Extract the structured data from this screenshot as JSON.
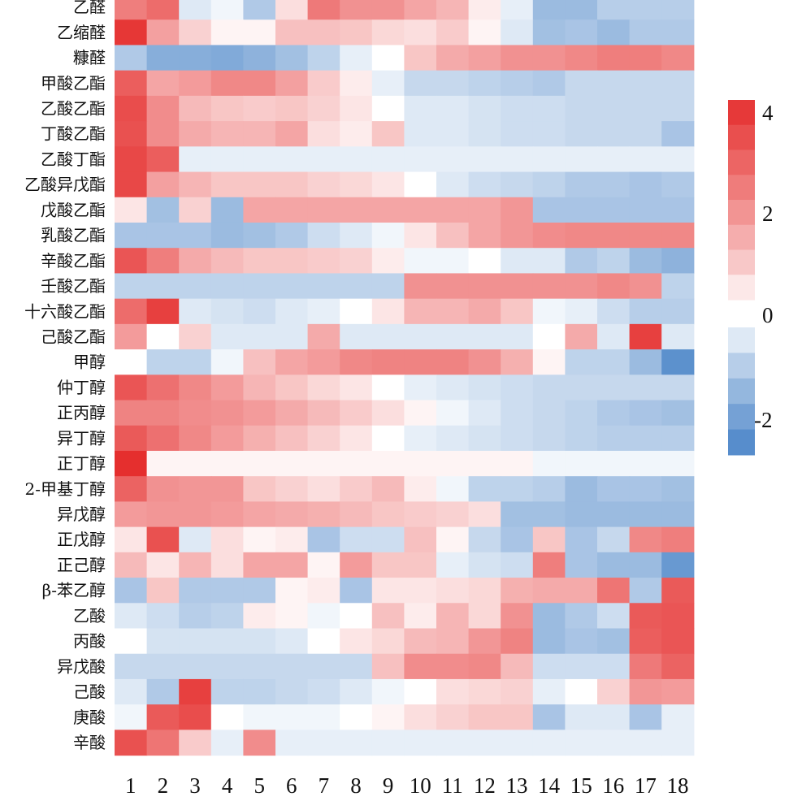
{
  "chart_data": {
    "type": "heatmap",
    "title": "",
    "xlabel": "",
    "ylabel": "",
    "rows": [
      "乙醛",
      "乙缩醛",
      "糠醛",
      "甲酸乙酯",
      "乙酸乙酯",
      "丁酸乙酯",
      "乙酸丁酯",
      "乙酸异戊酯",
      "戊酸乙酯",
      "乳酸乙酯",
      "辛酸乙酯",
      "壬酸乙酯",
      "十六酸乙酯",
      "己酸乙酯",
      "甲醇",
      "仲丁醇",
      "正丙醇",
      "异丁醇",
      "正丁醇",
      "2-甲基丁醇",
      "异戊醇",
      "正戊醇",
      "正己醇",
      "β-苯乙醇",
      "乙酸",
      "丙酸",
      "异戊酸",
      "己酸",
      "庚酸",
      "辛酸"
    ],
    "columns": [
      "1",
      "2",
      "3",
      "4",
      "5",
      "6",
      "7",
      "8",
      "9",
      "10",
      "11",
      "12",
      "13",
      "14",
      "15",
      "16",
      "17",
      "18"
    ],
    "values": [
      [
        2.2,
        2.6,
        -0.3,
        -0.1,
        -0.9,
        0.4,
        2.3,
        1.8,
        1.8,
        1.4,
        1.1,
        0.2,
        -0.2,
        -1.2,
        -1.2,
        -0.8,
        -0.8,
        -0.8
      ],
      [
        3.8,
        1.5,
        0.6,
        0.1,
        0.1,
        0.9,
        0.9,
        0.8,
        0.5,
        0.4,
        0.7,
        0.1,
        -0.3,
        -1.1,
        -1.0,
        -1.2,
        -0.9,
        -0.9
      ],
      [
        -0.9,
        -1.5,
        -1.5,
        -1.6,
        -1.4,
        -1.1,
        -0.7,
        -0.2,
        0.0,
        0.8,
        1.3,
        1.5,
        1.8,
        1.8,
        2.0,
        2.2,
        2.2,
        2.0
      ],
      [
        2.9,
        1.4,
        1.6,
        2.0,
        2.0,
        1.5,
        0.7,
        0.2,
        -0.2,
        -0.6,
        -0.6,
        -0.7,
        -0.8,
        -0.9,
        -0.6,
        -0.6,
        -0.6,
        -0.6
      ],
      [
        3.3,
        1.9,
        1.0,
        0.8,
        0.7,
        0.8,
        0.6,
        0.3,
        0.0,
        -0.3,
        -0.3,
        -0.4,
        -0.5,
        -0.5,
        -0.6,
        -0.6,
        -0.6,
        -0.6
      ],
      [
        3.2,
        1.9,
        1.3,
        1.1,
        1.1,
        1.4,
        0.4,
        0.2,
        0.8,
        -0.3,
        -0.3,
        -0.4,
        -0.5,
        -0.5,
        -0.6,
        -0.6,
        -0.6,
        -1.0
      ],
      [
        3.4,
        2.9,
        -0.2,
        -0.2,
        -0.2,
        -0.2,
        -0.2,
        -0.2,
        -0.2,
        -0.2,
        -0.2,
        -0.2,
        -0.2,
        -0.2,
        -0.2,
        -0.2,
        -0.2,
        -0.2
      ],
      [
        3.4,
        1.5,
        1.1,
        0.8,
        0.8,
        0.8,
        0.6,
        0.5,
        0.3,
        0.0,
        -0.3,
        -0.5,
        -0.6,
        -0.7,
        -0.9,
        -0.9,
        -1.0,
        -0.9
      ],
      [
        0.3,
        -1.1,
        0.6,
        -1.2,
        1.4,
        1.4,
        1.4,
        1.4,
        1.4,
        1.4,
        1.4,
        1.4,
        1.7,
        -1.0,
        -1.0,
        -1.0,
        -1.0,
        -1.0
      ],
      [
        -1.0,
        -1.0,
        -1.0,
        -1.2,
        -1.1,
        -0.9,
        -0.5,
        -0.3,
        -0.1,
        0.3,
        0.9,
        1.4,
        1.7,
        1.9,
        2.0,
        2.0,
        2.0,
        2.0
      ],
      [
        3.1,
        2.2,
        1.3,
        1.0,
        0.8,
        0.8,
        0.7,
        0.6,
        0.2,
        -0.1,
        -0.1,
        0.0,
        -0.3,
        -0.3,
        -0.9,
        -0.7,
        -1.2,
        -1.4
      ],
      [
        -0.7,
        -0.7,
        -0.7,
        -0.7,
        -0.7,
        -0.7,
        -0.7,
        -0.7,
        -0.7,
        1.8,
        1.8,
        1.8,
        1.8,
        1.8,
        1.8,
        2.0,
        1.8,
        -0.7
      ],
      [
        2.6,
        3.6,
        -0.3,
        -0.4,
        -0.5,
        -0.3,
        -0.2,
        0.0,
        0.3,
        1.1,
        1.1,
        1.3,
        0.8,
        -0.1,
        -0.2,
        -0.5,
        -0.8,
        -0.8
      ],
      [
        1.6,
        0.0,
        0.6,
        -0.3,
        -0.3,
        -0.3,
        1.3,
        -0.3,
        -0.3,
        -0.3,
        -0.3,
        -0.3,
        -0.3,
        0.0,
        1.3,
        -0.3,
        3.6,
        -0.3
      ],
      [
        0.0,
        -0.7,
        -0.7,
        -0.1,
        0.9,
        1.4,
        1.6,
        2.0,
        2.1,
        2.1,
        2.1,
        1.8,
        1.2,
        0.1,
        -0.7,
        -0.7,
        -1.2,
        -2.2
      ],
      [
        3.1,
        2.5,
        2.0,
        1.6,
        1.1,
        0.8,
        0.5,
        0.3,
        0.0,
        -0.2,
        -0.3,
        -0.4,
        -0.5,
        -0.6,
        -0.6,
        -0.6,
        -0.6,
        -0.6
      ],
      [
        2.1,
        2.1,
        1.9,
        1.8,
        1.6,
        1.3,
        1.0,
        0.7,
        0.4,
        0.1,
        -0.1,
        -0.3,
        -0.5,
        -0.6,
        -0.7,
        -0.9,
        -1.0,
        -1.1
      ],
      [
        3.0,
        2.5,
        2.0,
        1.6,
        1.2,
        0.9,
        0.6,
        0.3,
        0.0,
        -0.2,
        -0.3,
        -0.4,
        -0.5,
        -0.6,
        -0.7,
        -0.8,
        -0.8,
        -0.8
      ],
      [
        4.0,
        0.1,
        0.1,
        0.1,
        0.1,
        0.1,
        0.1,
        0.1,
        0.1,
        0.1,
        0.1,
        0.1,
        0.1,
        -0.1,
        -0.1,
        -0.1,
        -0.1,
        -0.1
      ],
      [
        2.8,
        1.8,
        1.7,
        1.7,
        0.8,
        0.6,
        0.4,
        0.7,
        1.0,
        0.2,
        -0.1,
        -0.7,
        -0.7,
        -0.8,
        -1.2,
        -1.0,
        -1.0,
        -1.1
      ],
      [
        1.6,
        1.7,
        1.7,
        1.6,
        1.4,
        1.3,
        1.2,
        1.0,
        0.8,
        0.7,
        0.6,
        0.4,
        -1.1,
        -1.1,
        -1.2,
        -1.2,
        -1.2,
        -1.2
      ],
      [
        0.3,
        3.2,
        -0.3,
        0.4,
        0.1,
        0.2,
        -1.0,
        -0.5,
        -0.5,
        0.9,
        0.1,
        -0.6,
        -1.0,
        0.8,
        -1.0,
        -0.6,
        2.0,
        2.2
      ],
      [
        1.0,
        0.3,
        1.1,
        0.4,
        1.4,
        1.4,
        0.1,
        1.6,
        0.8,
        0.8,
        -0.2,
        -0.4,
        -0.5,
        2.2,
        -1.0,
        -1.2,
        -1.2,
        -2.0
      ],
      [
        -1.0,
        0.8,
        -0.9,
        -0.9,
        -0.9,
        0.1,
        0.2,
        -1.0,
        0.3,
        0.3,
        0.4,
        0.5,
        1.2,
        1.3,
        1.3,
        2.4,
        -0.9,
        3.0
      ],
      [
        -0.3,
        -0.5,
        -0.8,
        -0.7,
        0.2,
        0.1,
        -0.1,
        0.0,
        0.9,
        0.2,
        1.1,
        0.5,
        1.8,
        -1.2,
        -0.9,
        -0.5,
        3.0,
        3.1
      ],
      [
        0.0,
        -0.4,
        -0.4,
        -0.4,
        -0.4,
        -0.3,
        0.0,
        0.3,
        0.5,
        1.0,
        1.1,
        1.7,
        2.1,
        -1.2,
        -1.0,
        -1.1,
        2.9,
        3.1
      ],
      [
        -0.6,
        -0.6,
        -0.6,
        -0.6,
        -0.6,
        -0.6,
        -0.6,
        -0.6,
        0.9,
        1.9,
        1.9,
        2.0,
        1.0,
        -0.5,
        -0.5,
        -0.5,
        2.3,
        2.8
      ],
      [
        -0.3,
        -0.9,
        3.6,
        -0.7,
        -0.7,
        -0.6,
        -0.5,
        -0.3,
        -0.1,
        0.0,
        0.4,
        0.5,
        0.6,
        -0.2,
        0.0,
        0.6,
        1.7,
        1.6
      ],
      [
        -0.1,
        3.0,
        3.3,
        0.0,
        -0.1,
        -0.1,
        -0.1,
        0.0,
        0.1,
        0.4,
        0.6,
        0.8,
        0.8,
        -1.0,
        -0.3,
        -0.3,
        -1.0,
        -0.2
      ],
      [
        3.2,
        2.4,
        0.7,
        -0.2,
        1.9,
        -0.2,
        -0.2,
        -0.2,
        -0.2,
        -0.2,
        -0.2,
        -0.2,
        -0.2,
        -0.2,
        -0.2,
        -0.2,
        -0.2,
        -0.2
      ]
    ],
    "vmin": -2.5,
    "vmax": 4,
    "colorbar_ticks": [
      "4",
      "2",
      "0",
      "-2"
    ],
    "colors": {
      "high": "#e52f2e",
      "mid": "#ffffff",
      "low": "#4b85c8"
    },
    "legend": "right"
  }
}
